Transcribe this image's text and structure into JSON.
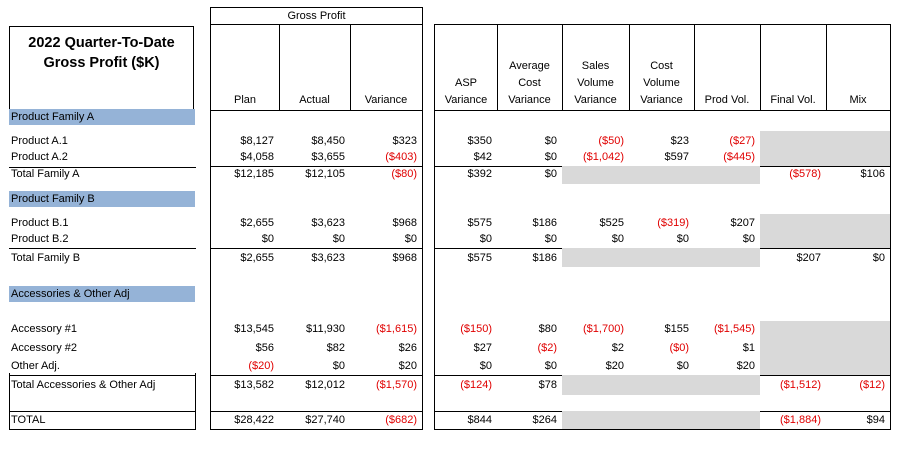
{
  "title": {
    "line1": "2022 Quarter-To-Date",
    "line2": "Gross Profit ($K)"
  },
  "group_header": "Gross Profit",
  "columns": [
    {
      "key": "plan",
      "lines": [
        "",
        "",
        "Plan"
      ]
    },
    {
      "key": "actual",
      "lines": [
        "",
        "",
        "Actual"
      ]
    },
    {
      "key": "variance",
      "lines": [
        "",
        "",
        "Variance"
      ]
    },
    {
      "key": "asp",
      "lines": [
        "",
        "ASP",
        "Variance"
      ]
    },
    {
      "key": "avgcost",
      "lines": [
        "Average",
        "Cost",
        "Variance"
      ]
    },
    {
      "key": "salesvol",
      "lines": [
        "Sales",
        "Volume",
        "Variance"
      ]
    },
    {
      "key": "costvol",
      "lines": [
        "Cost",
        "Volume",
        "Variance"
      ]
    },
    {
      "key": "prodvol",
      "lines": [
        "",
        "",
        "Prod Vol."
      ]
    },
    {
      "key": "finalvol",
      "lines": [
        "",
        "",
        "Final Vol."
      ]
    },
    {
      "key": "mix",
      "lines": [
        "",
        "",
        "Mix"
      ]
    }
  ],
  "sections": [
    "Product Family A",
    "Product Family B",
    "Accessories & Other Adj"
  ],
  "rows": [
    {
      "label": "Product A.1",
      "values": [
        "$8,127",
        "$8,450",
        "$323",
        "$350",
        "$0",
        "($50)",
        "$23",
        "($27)",
        "",
        ""
      ]
    },
    {
      "label": "Product A.2",
      "values": [
        "$4,058",
        "$3,655",
        "($403)",
        "$42",
        "$0",
        "($1,042)",
        "$597",
        "($445)",
        "",
        ""
      ]
    },
    {
      "label": "Total Family A",
      "values": [
        "$12,185",
        "$12,105",
        "($80)",
        "$392",
        "$0",
        "",
        "",
        "",
        "($578)",
        "$106"
      ]
    },
    {
      "label": "Product B.1",
      "values": [
        "$2,655",
        "$3,623",
        "$968",
        "$575",
        "$186",
        "$525",
        "($319)",
        "$207",
        "",
        ""
      ]
    },
    {
      "label": "Product B.2",
      "values": [
        "$0",
        "$0",
        "$0",
        "$0",
        "$0",
        "$0",
        "$0",
        "$0",
        "",
        ""
      ]
    },
    {
      "label": "Total Family B",
      "values": [
        "$2,655",
        "$3,623",
        "$968",
        "$575",
        "$186",
        "",
        "",
        "",
        "$207",
        "$0"
      ]
    },
    {
      "label": "Accessory #1",
      "values": [
        "$13,545",
        "$11,930",
        "($1,615)",
        "($150)",
        "$80",
        "($1,700)",
        "$155",
        "($1,545)",
        "",
        ""
      ]
    },
    {
      "label": "Accessory #2",
      "values": [
        "$56",
        "$82",
        "$26",
        "$27",
        "($2)",
        "$2",
        "($0)",
        "$1",
        "",
        ""
      ]
    },
    {
      "label": "Other Adj.",
      "values": [
        "($20)",
        "$0",
        "$20",
        "$0",
        "$0",
        "$20",
        "$0",
        "$20",
        "",
        ""
      ]
    },
    {
      "label": "Total Accessories & Other Adj",
      "values": [
        "$13,582",
        "$12,012",
        "($1,570)",
        "($124)",
        "$78",
        "",
        "",
        "",
        "($1,512)",
        "($12)"
      ]
    },
    {
      "label": "TOTAL",
      "values": [
        "$28,422",
        "$27,740",
        "($682)",
        "$844",
        "$264",
        "",
        "",
        "",
        "($1,884)",
        "$94"
      ]
    }
  ],
  "colors": {
    "section_fill": "#95b3d7",
    "shade": "#d9d9d9",
    "negative": "#e00000"
  }
}
